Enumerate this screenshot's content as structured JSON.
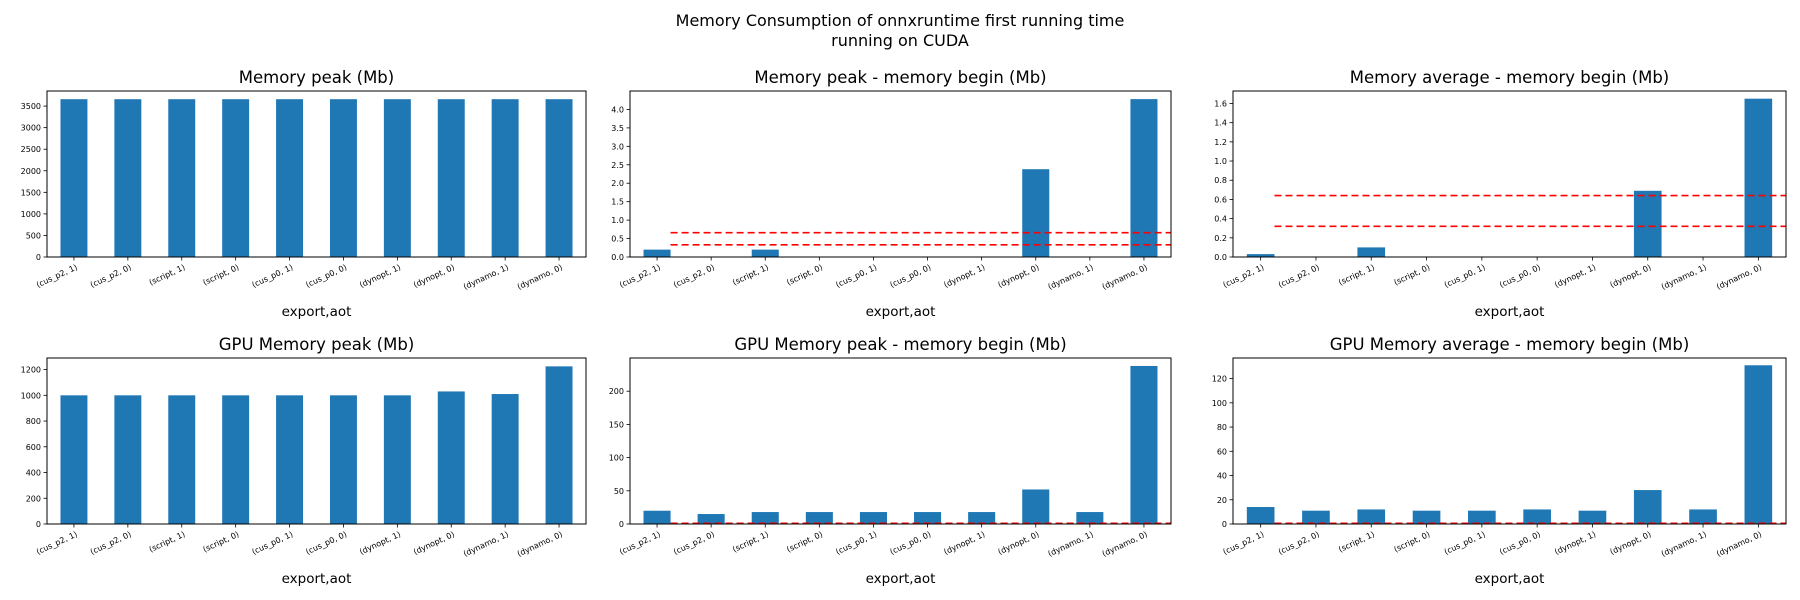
{
  "figure": {
    "title_line1": "Memory Consumption of onnxruntime first running time",
    "title_line2": "running on CUDA"
  },
  "colors": {
    "bar": "#1f77b4",
    "reference_line": "#ff0000"
  },
  "chart_data": [
    {
      "type": "bar",
      "title": "Memory peak (Mb)",
      "xlabel": "export,aot",
      "categories": [
        "(cus_p2, 1)",
        "(cus_p2, 0)",
        "(script, 1)",
        "(script, 0)",
        "(cus_p0, 1)",
        "(cus_p0, 0)",
        "(dynopt, 1)",
        "(dynopt, 0)",
        "(dynamo, 1)",
        "(dynamo, 0)"
      ],
      "values": [
        3660,
        3660,
        3660,
        3660,
        3660,
        3660,
        3660,
        3660,
        3660,
        3660
      ],
      "ylim": [
        0,
        3850
      ],
      "yticks": [
        0,
        500,
        1000,
        1500,
        2000,
        2500,
        3000,
        3500
      ],
      "ytick_labels": [
        "0",
        "500",
        "1000",
        "1500",
        "2000",
        "2500",
        "3000",
        "3500"
      ],
      "hlines": []
    },
    {
      "type": "bar",
      "title": "Memory peak - memory begin (Mb)",
      "xlabel": "export,aot",
      "categories": [
        "(cus_p2, 1)",
        "(cus_p2, 0)",
        "(script, 1)",
        "(script, 0)",
        "(cus_p0, 1)",
        "(cus_p0, 0)",
        "(dynopt, 1)",
        "(dynopt, 0)",
        "(dynamo, 1)",
        "(dynamo, 0)"
      ],
      "values": [
        0.2,
        0.0,
        0.2,
        0.0,
        0.0,
        0.0,
        0.0,
        2.38,
        0.0,
        4.28
      ],
      "ylim": [
        0,
        4.5
      ],
      "yticks": [
        0,
        0.5,
        1.0,
        1.5,
        2.0,
        2.5,
        3.0,
        3.5,
        4.0
      ],
      "ytick_labels": [
        "0.0",
        "0.5",
        "1.0",
        "1.5",
        "2.0",
        "2.5",
        "3.0",
        "3.5",
        "4.0"
      ],
      "hlines": [
        0.33,
        0.66
      ]
    },
    {
      "type": "bar",
      "title": "Memory average - memory begin (Mb)",
      "xlabel": "export,aot",
      "categories": [
        "(cus_p2, 1)",
        "(cus_p2, 0)",
        "(script, 1)",
        "(script, 0)",
        "(cus_p0, 1)",
        "(cus_p0, 0)",
        "(dynopt, 1)",
        "(dynopt, 0)",
        "(dynamo, 1)",
        "(dynamo, 0)"
      ],
      "values": [
        0.03,
        0.0,
        0.1,
        0.0,
        0.0,
        0.0,
        0.0,
        0.69,
        0.0,
        1.65
      ],
      "ylim": [
        0,
        1.73
      ],
      "yticks": [
        0,
        0.2,
        0.4,
        0.6,
        0.8,
        1.0,
        1.2,
        1.4,
        1.6
      ],
      "ytick_labels": [
        "0.0",
        "0.2",
        "0.4",
        "0.6",
        "0.8",
        "1.0",
        "1.2",
        "1.4",
        "1.6"
      ],
      "hlines": [
        0.32,
        0.64
      ]
    },
    {
      "type": "bar",
      "title": "GPU Memory peak (Mb)",
      "xlabel": "export,aot",
      "categories": [
        "(cus_p2, 1)",
        "(cus_p2, 0)",
        "(script, 1)",
        "(script, 0)",
        "(cus_p0, 1)",
        "(cus_p0, 0)",
        "(dynopt, 1)",
        "(dynopt, 0)",
        "(dynamo, 1)",
        "(dynamo, 0)"
      ],
      "values": [
        1000,
        1000,
        1000,
        1000,
        1000,
        1000,
        1000,
        1030,
        1010,
        1225
      ],
      "ylim": [
        0,
        1290
      ],
      "yticks": [
        0,
        200,
        400,
        600,
        800,
        1000,
        1200
      ],
      "ytick_labels": [
        "0",
        "200",
        "400",
        "600",
        "800",
        "1000",
        "1200"
      ],
      "hlines": []
    },
    {
      "type": "bar",
      "title": "GPU Memory peak - memory begin (Mb)",
      "xlabel": "export,aot",
      "categories": [
        "(cus_p2, 1)",
        "(cus_p2, 0)",
        "(script, 1)",
        "(script, 0)",
        "(cus_p0, 1)",
        "(cus_p0, 0)",
        "(dynopt, 1)",
        "(dynopt, 0)",
        "(dynamo, 1)",
        "(dynamo, 0)"
      ],
      "values": [
        20,
        15,
        18,
        18,
        18,
        18,
        18,
        52,
        18,
        238
      ],
      "ylim": [
        0,
        250
      ],
      "yticks": [
        0,
        50,
        100,
        150,
        200
      ],
      "ytick_labels": [
        "0",
        "50",
        "100",
        "150",
        "200"
      ],
      "hlines": [
        0.5,
        1.0
      ]
    },
    {
      "type": "bar",
      "title": "GPU Memory average - memory begin (Mb)",
      "xlabel": "export,aot",
      "categories": [
        "(cus_p2, 1)",
        "(cus_p2, 0)",
        "(script, 1)",
        "(script, 0)",
        "(cus_p0, 1)",
        "(cus_p0, 0)",
        "(dynopt, 1)",
        "(dynopt, 0)",
        "(dynamo, 1)",
        "(dynamo, 0)"
      ],
      "values": [
        14,
        11,
        12,
        11,
        11,
        12,
        11,
        28,
        12,
        131
      ],
      "ylim": [
        0,
        137
      ],
      "yticks": [
        0,
        20,
        40,
        60,
        80,
        100,
        120
      ],
      "ytick_labels": [
        "0",
        "20",
        "40",
        "60",
        "80",
        "100",
        "120"
      ],
      "hlines": [
        0.3,
        0.6
      ]
    }
  ]
}
